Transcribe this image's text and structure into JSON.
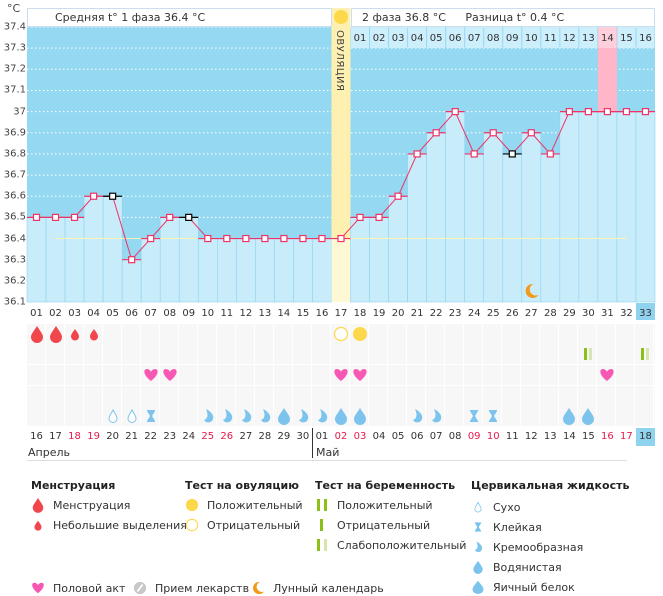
{
  "unit_label": "°C",
  "header": {
    "phase1": "Средняя t° 1 фаза 36.4 °C",
    "phase2": "2 фаза 36.8 °C",
    "difference": "Разница t° 0.4 °C",
    "ovulation_label": "ОВУЛЯЦИЯ"
  },
  "colors": {
    "bg_dark": "#94d8f2",
    "bar": "#c9ecfb",
    "ovulation": "#fdf0b0",
    "line": "#ee3366",
    "pink": "#ffb6c8",
    "highlight": "#8fd3ef"
  },
  "chart_data": {
    "type": "line",
    "ylim": [
      36.1,
      37.4
    ],
    "yticks": [
      "37.4",
      "37.3",
      "37.2",
      "37.1",
      "37",
      "36.9",
      "36.8",
      "36.7",
      "36.6",
      "36.5",
      "36.4",
      "36.3",
      "36.2",
      "36.1"
    ],
    "cycle_days": [
      "01",
      "02",
      "03",
      "04",
      "05",
      "06",
      "07",
      "08",
      "09",
      "10",
      "11",
      "12",
      "13",
      "14",
      "15",
      "16",
      "17",
      "18",
      "19",
      "20",
      "21",
      "22",
      "23",
      "24",
      "25",
      "26",
      "27",
      "28",
      "29",
      "30",
      "31",
      "32",
      "33"
    ],
    "temperatures": [
      36.5,
      36.5,
      36.5,
      36.6,
      36.6,
      36.3,
      36.4,
      36.5,
      36.5,
      36.4,
      36.4,
      36.4,
      36.4,
      36.4,
      36.4,
      36.4,
      36.4,
      36.5,
      36.5,
      36.6,
      36.8,
      36.9,
      37.0,
      36.8,
      36.9,
      36.8,
      36.9,
      36.8,
      37.0,
      37.0,
      37.0,
      37.0,
      37.0
    ],
    "excluded_days": [
      5,
      9,
      26
    ],
    "coverline": 36.4,
    "ovulation_day": 17,
    "phase2_days": [
      "01",
      "02",
      "03",
      "04",
      "05",
      "06",
      "07",
      "08",
      "09",
      "10",
      "11",
      "12",
      "13",
      "14",
      "15",
      "16"
    ],
    "highlight_phase2_day": 14,
    "current_day": 33,
    "moon_day": 27
  },
  "calendar": {
    "dates": [
      "16",
      "17",
      "18",
      "19",
      "20",
      "21",
      "22",
      "23",
      "24",
      "25",
      "26",
      "27",
      "28",
      "29",
      "30",
      "01",
      "02",
      "03",
      "04",
      "05",
      "06",
      "07",
      "08",
      "09",
      "10",
      "11",
      "12",
      "13",
      "14",
      "15",
      "16",
      "17",
      "18"
    ],
    "weekend_flags": [
      0,
      0,
      1,
      1,
      0,
      0,
      0,
      0,
      0,
      1,
      1,
      0,
      0,
      0,
      0,
      0,
      1,
      1,
      0,
      0,
      0,
      0,
      0,
      1,
      1,
      0,
      0,
      0,
      0,
      0,
      1,
      1,
      0
    ],
    "months": [
      {
        "name": "Апрель",
        "start": 1
      },
      {
        "name": "Май",
        "start": 16
      }
    ]
  },
  "rows": {
    "menstruation": {
      "1": "heavy",
      "2": "heavy",
      "3": "light",
      "4": "light"
    },
    "ovulation_test": {
      "17": "negative",
      "18": "positive"
    },
    "pregnancy_test": {
      "30": "weak",
      "33": "weak"
    },
    "intercourse": [
      7,
      8,
      17,
      18,
      31
    ],
    "fluid": {
      "5": "dry",
      "6": "dry",
      "7": "sticky",
      "10": "creamy",
      "11": "creamy",
      "12": "creamy",
      "13": "creamy",
      "14": "watery",
      "15": "creamy",
      "16": "creamy",
      "17": "watery",
      "18": "watery",
      "21": "creamy",
      "22": "creamy",
      "24": "sticky",
      "25": "sticky",
      "29": "watery",
      "30": "watery"
    }
  },
  "legend": {
    "menstruation": {
      "title": "Менструация",
      "items": [
        "Менструация",
        "Небольшие выделения"
      ]
    },
    "ovulation_test": {
      "title": "Тест на овуляцию",
      "items": [
        "Положительный",
        "Отрицательный"
      ]
    },
    "pregnancy_test": {
      "title": "Тест на беременность",
      "items": [
        "Положительный",
        "Отрицательный",
        "Слабоположительный"
      ]
    },
    "fluid": {
      "title": "Цервикальная жидкость",
      "items": [
        "Сухо",
        "Клейкая",
        "Кремообразная",
        "Водянистая",
        "Яичный белок"
      ]
    },
    "bottom": [
      "Половой акт",
      "Прием лекарств",
      "Лунный календарь"
    ]
  }
}
